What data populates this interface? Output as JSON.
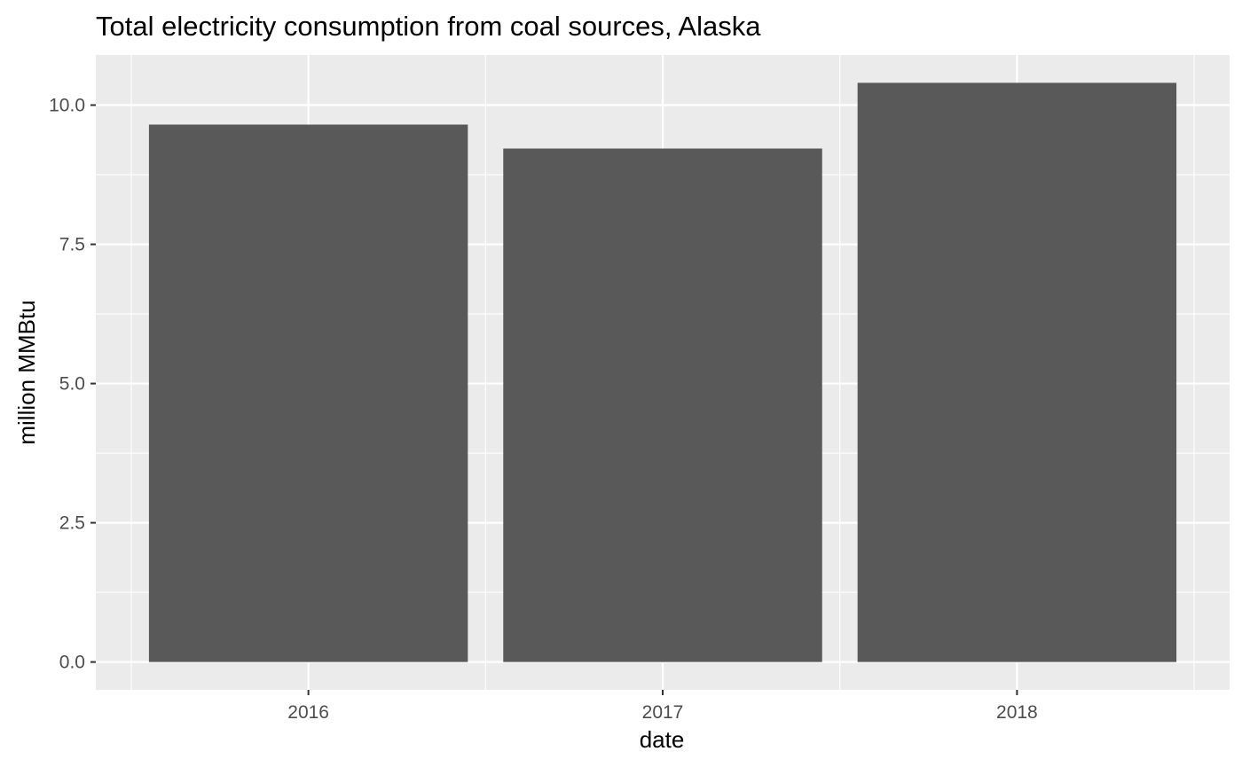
{
  "chart_data": {
    "type": "bar",
    "title": "Total electricity consumption from coal sources, Alaska",
    "xlabel": "date",
    "ylabel": "million MMBtu",
    "categories": [
      "2016",
      "2017",
      "2018"
    ],
    "values": [
      9.65,
      9.22,
      10.4
    ],
    "ylim": [
      -0.5,
      10.9
    ],
    "y_ticks": [
      0,
      2.5,
      5,
      7.5,
      10
    ],
    "y_tick_labels": [
      "0.0",
      "2.5",
      "5.0",
      "7.5",
      "10.0"
    ],
    "grid": true,
    "legend": "none",
    "colors": {
      "bar": "#595959",
      "panel_background": "#ebebeb",
      "grid": "#ffffff",
      "tick_text": "#4d4d4d",
      "tick_mark": "#333333"
    }
  }
}
